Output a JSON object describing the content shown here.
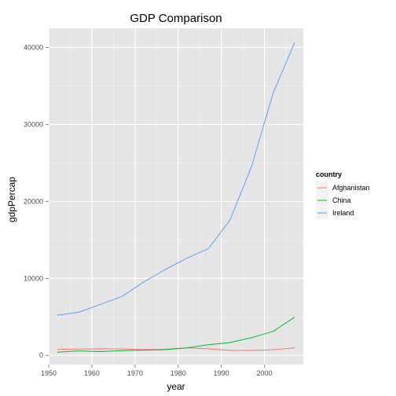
{
  "chart_data": {
    "type": "line",
    "title": "GDP Comparison",
    "xlabel": "year",
    "ylabel": "gdpPercap",
    "xlim": [
      1950,
      2009
    ],
    "ylim": [
      -1200,
      42500
    ],
    "x_ticks": [
      1950,
      1960,
      1970,
      1980,
      1990,
      2000
    ],
    "y_ticks": [
      0,
      10000,
      20000,
      30000,
      40000
    ],
    "grid": true,
    "legend": {
      "title": "country",
      "position": "right"
    },
    "x": [
      1952,
      1957,
      1962,
      1967,
      1972,
      1977,
      1982,
      1987,
      1992,
      1997,
      2002,
      2007
    ],
    "series": [
      {
        "name": "Afghanistan",
        "color": "#F8766D",
        "values": [
          779,
          821,
          853,
          836,
          740,
          786,
          978,
          852,
          649,
          635,
          727,
          975
        ]
      },
      {
        "name": "China",
        "color": "#00BA38",
        "values": [
          400,
          575,
          488,
          613,
          677,
          741,
          962,
          1379,
          1656,
          2289,
          3119,
          4959
        ]
      },
      {
        "name": "Ireland",
        "color": "#619CFF",
        "values": [
          5210,
          5599,
          6632,
          7656,
          9531,
          11151,
          12618,
          13873,
          17559,
          24522,
          34077,
          40676
        ]
      }
    ]
  }
}
